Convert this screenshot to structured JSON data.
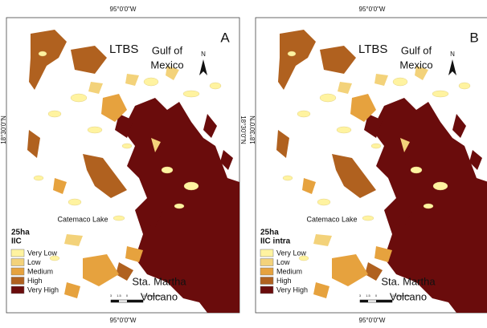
{
  "longitude_label": "95°0'0\"W",
  "latitude_label": "18°30'0\"N",
  "panels": [
    {
      "letter": "A",
      "legend_title": "25ha",
      "legend_subtitle": "IIC"
    },
    {
      "letter": "B",
      "legend_title": "25ha",
      "legend_subtitle": "IIC intra"
    }
  ],
  "places": {
    "station": "LTBS",
    "gulf_line1": "Gulf of",
    "gulf_line2": "Mexico",
    "lake": "Catemaco Lake",
    "volcano_line1": "Sta. Martha",
    "volcano_line2": "Volcano"
  },
  "north": "N",
  "legend": [
    {
      "label": "Very Low",
      "color": "#fff3a0"
    },
    {
      "label": "Low",
      "color": "#f3d27a"
    },
    {
      "label": "Medium",
      "color": "#e6a23e"
    },
    {
      "label": "High",
      "color": "#b0611f"
    },
    {
      "label": "Very High",
      "color": "#6a0c0c"
    }
  ],
  "scale_labels": [
    "3",
    "1.5",
    "0",
    "3 Kilometers"
  ]
}
